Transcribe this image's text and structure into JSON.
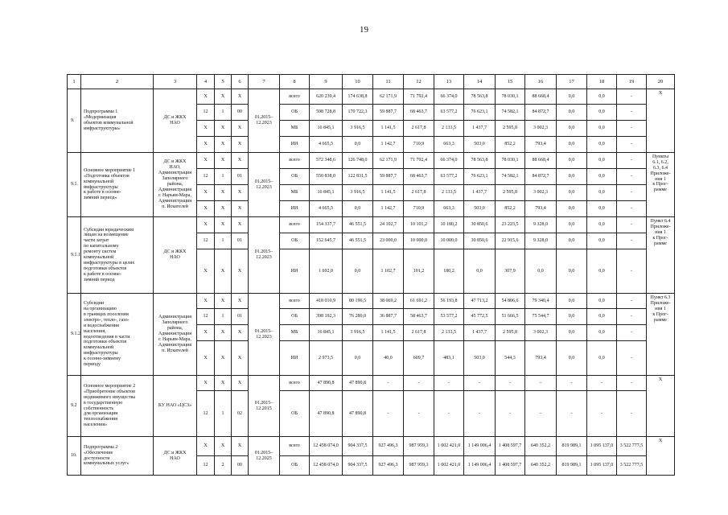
{
  "page_number": "19",
  "header": [
    "1",
    "2",
    "3",
    "4",
    "5",
    "6",
    "7",
    "8",
    "9",
    "10",
    "11",
    "12",
    "13",
    "14",
    "15",
    "16",
    "17",
    "18",
    "19",
    "20"
  ],
  "groups": [
    {
      "num": "9.",
      "name": "Подпрограмма 1\n«Модернизация\nобъектов коммунальной\nинфраструктуры»",
      "executor": "ДС и ЖКХ\nНАО",
      "period": "01.2015–\n12.2023",
      "note": "Х",
      "rows": [
        {
          "codes": [
            "Х",
            "Х",
            "Х"
          ],
          "source": "всего",
          "values": [
            "620 239,4",
            "174 638,8",
            "62 171,9",
            "71 792,4",
            "66 374,0",
            "78 563,8",
            "78 030,1",
            "88 668,4",
            "0,0",
            "0,0",
            "-"
          ]
        },
        {
          "codes": [
            "12",
            "1",
            "00"
          ],
          "source": "ОБ",
          "values": [
            "598 728,8",
            "170 722,3",
            "59 887,7",
            "68 463,7",
            "63 577,2",
            "76 623,1",
            "74 582,1",
            "84 872,7",
            "0,0",
            "0,0",
            "-"
          ]
        },
        {
          "codes": [
            "Х",
            "Х",
            "Х"
          ],
          "source": "МБ",
          "values": [
            "16 845,1",
            "3 916,5",
            "1 141,5",
            "2 617,8",
            "2 133,5",
            "1 437,7",
            "2 595,8",
            "3 002,3",
            "0,0",
            "0,0",
            "-"
          ]
        },
        {
          "codes": [
            "Х",
            "Х",
            "Х"
          ],
          "source": "ИИ",
          "values": [
            "4 665,5",
            "0,0",
            "1 142,7",
            "710,9",
            "663,3",
            "503,0",
            "852,2",
            "793,4",
            "0,0",
            "0,0",
            "-"
          ]
        }
      ]
    },
    {
      "num": "9.1.",
      "name": "Основное мероприятие 1\n«Подготовка объектов\nкоммунальной\nинфраструктуры\nк работе в осенне-\nзимний период»",
      "executor": "ДС и ЖКХ\nНАО,\nАдминистрация\nЗаполярного\nрайона,\nАдминистрация\nг. Нарьян-Мара,\nАдминистрация\nп. Искателей",
      "period": "01.2015–\n12.2023",
      "note": "Пункты\n6.1, 6.2,\n6.3, 6.4\nПриложе-\nния 1\nк Прог-\nрамме",
      "rows": [
        {
          "codes": [
            "Х",
            "Х",
            "Х"
          ],
          "source": "всего",
          "values": [
            "572 348,6",
            "126 748,0",
            "62 171,9",
            "71 792,4",
            "66 374,0",
            "78 563,8",
            "78 030,1",
            "88 668,4",
            "0,0",
            "0,0",
            "-"
          ]
        },
        {
          "codes": [
            "12",
            "1",
            "01"
          ],
          "source": "ОБ",
          "values": [
            "550 838,0",
            "122 831,5",
            "59 887,7",
            "68 463,7",
            "63 577,2",
            "76 623,1",
            "74 582,1",
            "84 872,7",
            "0,0",
            "0,0",
            "-"
          ]
        },
        {
          "codes": [
            "Х",
            "Х",
            "Х"
          ],
          "source": "МБ",
          "values": [
            "16 845,1",
            "3 916,5",
            "1 141,5",
            "2 617,8",
            "2 133,5",
            "1 437,7",
            "2 595,8",
            "3 002,3",
            "0,0",
            "0,0",
            "-"
          ]
        },
        {
          "codes": [
            "Х",
            "Х",
            "Х"
          ],
          "source": "ИИ",
          "values": [
            "4 665,5",
            "0,0",
            "1 142,7",
            "710,9",
            "663,3",
            "503,0",
            "852,2",
            "793,4",
            "0,0",
            "0,0",
            "-"
          ]
        }
      ]
    },
    {
      "num": "9.1.1.",
      "name": "Субсидии юридическим\nлицам на возмещение\nчасти затрат\nпо капитальному\nремонту систем\nкоммунальной\nинфраструктуры в целях\nподготовки объектов\nк работе в осенне-\nзимний период",
      "executor": "ДС и ЖКХ\nНАО",
      "period": "01.2015–\n12.2023",
      "note": "Пункт 6.4\nПриложе-\nния 1\nк Прог-\nрамме",
      "rows": [
        {
          "codes": [
            "Х",
            "Х",
            "Х"
          ],
          "source": "всего",
          "values": [
            "154 337,7",
            "46 551,5",
            "24 102,7",
            "10 101,2",
            "10 180,2",
            "30 850,6",
            "23 223,5",
            "9 328,0",
            "0,0",
            "0,0",
            "-"
          ]
        },
        {
          "codes": [
            "12",
            "1",
            "01"
          ],
          "source": "ОБ",
          "values": [
            "152 645,7",
            "46 551,5",
            "23 000,0",
            "10 000,0",
            "10 000,0",
            "30 850,6",
            "22 915,6",
            "9 328,0",
            "0,0",
            "0,0",
            "-"
          ]
        },
        {
          "codes": [
            "Х",
            "Х",
            "Х"
          ],
          "source": "ИИ",
          "values": [
            "1 692,0",
            "0,0",
            "1 102,7",
            "101,2",
            "180,2",
            "0,0",
            "307,9",
            "0,0",
            "0,0",
            "0,0",
            "-"
          ]
        }
      ]
    },
    {
      "num": "9.1.2.",
      "name": "Субсидии\nна организацию\nв границах поселения\nэлектро-, тепло-, газо-\nи водоснабжения\nнаселения,\nводоотведения в части\nподготовки объектов\nкоммунальной\nинфраструктуры\nк осенне-зимнему\nпериоду",
      "executor": "Администрация\nЗаполярного\nрайона,\nАдминистрация\nг. Нарьян-Мара,\nАдминистрация\nп. Искателей",
      "period": "01.2015–\n12.2023",
      "note": "Пункт 6.3\nПриложе-\nния 1\nк Прог-\nрамме",
      "rows": [
        {
          "codes": [
            "Х",
            "Х",
            "Х"
          ],
          "source": "всего",
          "values": [
            "418 010,9",
            "80 196,5",
            "38 069,2",
            "61 691,2",
            "56 193,8",
            "47 713,2",
            "54 806,6",
            "79 340,4",
            "0,0",
            "0,0",
            "-"
          ]
        },
        {
          "codes": [
            "12",
            "1",
            "01"
          ],
          "source": "ОБ",
          "values": [
            "398 192,3",
            "76 280,0",
            "36 887,7",
            "58 463,7",
            "53 577,2",
            "45 772,5",
            "51 666,5",
            "75 544,7",
            "0,0",
            "0,0",
            "-"
          ]
        },
        {
          "codes": [
            "Х",
            "Х",
            "Х"
          ],
          "source": "МБ",
          "values": [
            "16 845,1",
            "3 916,5",
            "1 141,5",
            "2 617,8",
            "2 133,5",
            "1 437,7",
            "2 595,8",
            "3 002,3",
            "0,0",
            "0,0",
            "-"
          ]
        },
        {
          "codes": [
            "Х",
            "Х",
            "Х"
          ],
          "source": "ИИ",
          "values": [
            "2 973,5",
            "0,0",
            "40,0",
            "609,7",
            "483,1",
            "503,0",
            "544,3",
            "793,4",
            "0,0",
            "0,0",
            "-"
          ]
        }
      ]
    },
    {
      "num": "9.2",
      "name": "Основное мероприятие 2\n«Приобретение объектов\nнедвижимого имущества\nв государственную\nсобственность\nдля организации\nтеплоснабжения\nнаселения»",
      "executor": "КУ НАО «ЦСЗ»",
      "period": "01.2015–\n12.2015",
      "note": "Х",
      "rows": [
        {
          "codes": [
            "Х",
            "Х",
            "Х"
          ],
          "source": "всего",
          "values": [
            "47 890,8",
            "47 890,8",
            "-",
            "-",
            "-",
            "-",
            "-",
            "-",
            "-",
            "-",
            "-"
          ]
        },
        {
          "codes": [
            "12",
            "1",
            "02"
          ],
          "source": "ОБ",
          "values": [
            "47 890,8",
            "47 890,8",
            "-",
            "-",
            "-",
            "-",
            "-",
            "-",
            "-",
            "-",
            "-"
          ]
        }
      ]
    },
    {
      "num": "10.",
      "name": "Подпрограмма 2\n«Обеспечение\nдоступности\nкоммунальных услуг»",
      "executor": "ДС и ЖКХ\nНАО",
      "period": "01.2015–\n12.2025",
      "note": "Х",
      "rows": [
        {
          "codes": [
            "Х",
            "Х",
            "Х"
          ],
          "source": "всего",
          "values": [
            "12 458 074,0",
            "904 337,5",
            "927 496,3",
            "987 959,3",
            "1 002 421,0",
            "1 149 006,4",
            "1 408 597,7",
            "640 352,2",
            "819 989,1",
            "1 095 137,0",
            "3 522 777,5"
          ]
        },
        {
          "codes": [
            "12",
            "2",
            "00"
          ],
          "source": "ОБ",
          "values": [
            "12 458 074,0",
            "904 337,5",
            "927 496,3",
            "987 959,3",
            "1 002 421,0",
            "1 149 006,4",
            "1 408 597,7",
            "640 352,2",
            "819 989,1",
            "1 095 137,0",
            "3 522 777,5"
          ]
        }
      ]
    }
  ]
}
